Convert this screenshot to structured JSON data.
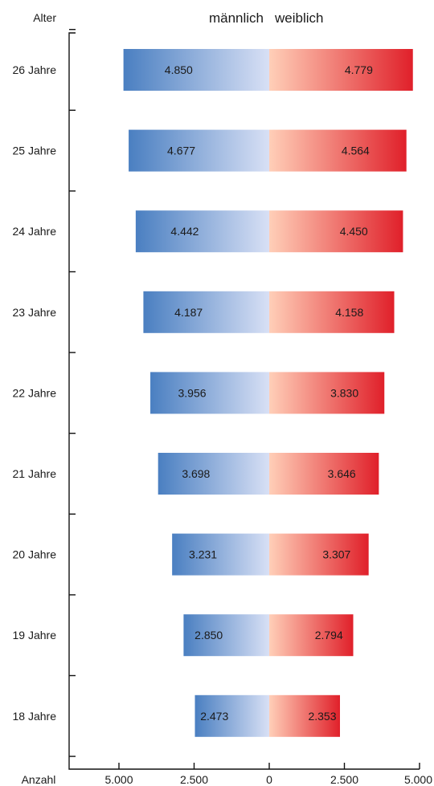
{
  "chart_data": {
    "type": "bar",
    "orientation": "horizontal",
    "layout": "population-pyramid",
    "ylabel": "Alter",
    "xlabel": "Anzahl",
    "legend": [
      "männlich",
      "weiblich"
    ],
    "legend_position": "top-center",
    "categories": [
      "26 Jahre",
      "25 Jahre",
      "24 Jahre",
      "23 Jahre",
      "22 Jahre",
      "21 Jahre",
      "20 Jahre",
      "19 Jahre",
      "18 Jahre"
    ],
    "series": [
      {
        "name": "männlich",
        "values": [
          4850,
          4677,
          4442,
          4187,
          3956,
          3698,
          3231,
          2850,
          2473
        ],
        "labels": [
          "4.850",
          "4.677",
          "4.442",
          "4.187",
          "3.956",
          "3.698",
          "3.231",
          "2.850",
          "2.473"
        ],
        "color_outer": "#4a7fc1",
        "color_inner": "#d8e0f5"
      },
      {
        "name": "weiblich",
        "values": [
          4779,
          4564,
          4450,
          4158,
          3830,
          3646,
          3307,
          2794,
          2353
        ],
        "labels": [
          "4.779",
          "4.564",
          "4.450",
          "4.158",
          "3.830",
          "3.646",
          "3.307",
          "2.794",
          "2.353"
        ],
        "color_outer": "#e0202a",
        "color_inner": "#ffcfb8"
      }
    ],
    "xticks": [
      -5000,
      -2500,
      0,
      2500,
      5000
    ],
    "xtick_labels": [
      "5.000",
      "2.500",
      "0",
      "2.500",
      "5.000"
    ],
    "xlim": [
      -5000,
      5000
    ],
    "grid": false
  }
}
